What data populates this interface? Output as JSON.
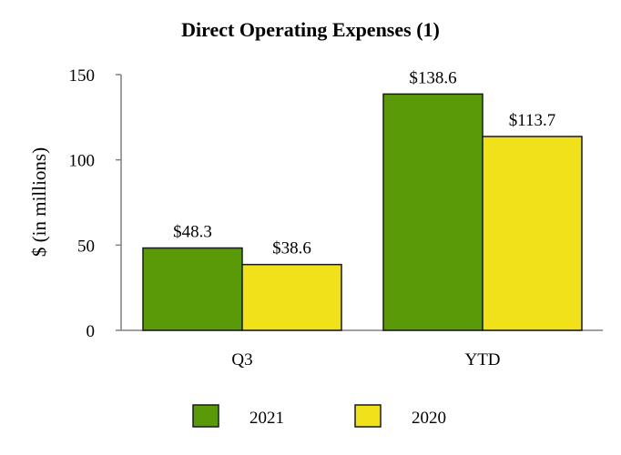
{
  "chart_data": {
    "type": "bar",
    "title": "Direct Operating Expenses (1)",
    "ylabel": "$ (in millions)",
    "xlabel": "",
    "categories": [
      "Q3",
      "YTD"
    ],
    "series": [
      {
        "name": "2021",
        "color": "#5a9a08",
        "values": [
          48.3,
          138.6
        ],
        "labels": [
          "$48.3",
          "$138.6"
        ]
      },
      {
        "name": "2020",
        "color": "#f0e11a",
        "values": [
          38.6,
          113.7
        ],
        "labels": [
          "$38.6",
          "$113.7"
        ]
      }
    ],
    "ylim": [
      0,
      150
    ],
    "yticks": [
      "0",
      "50",
      "100",
      "150"
    ],
    "grid": false,
    "legend": "bottom"
  }
}
